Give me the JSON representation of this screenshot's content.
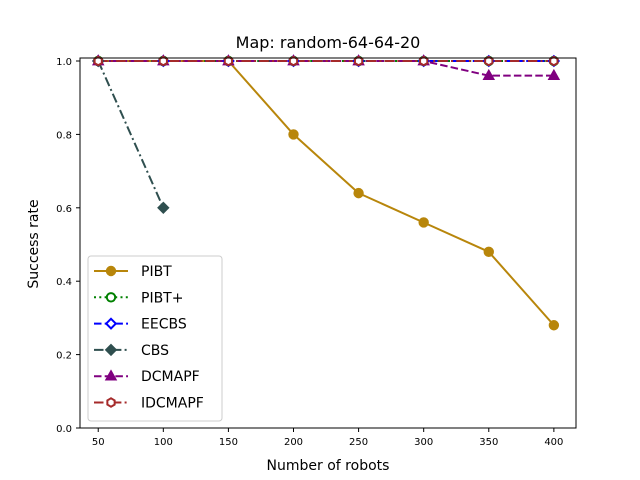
{
  "chart_data": {
    "type": "line",
    "title": "Map: random-64-64-20",
    "xlabel": "Number of robots",
    "ylabel": "Success rate",
    "x_ticks": [
      50,
      100,
      150,
      200,
      250,
      300,
      350,
      400
    ],
    "y_ticks": [
      0.0,
      0.2,
      0.4,
      0.6,
      0.8,
      1.0
    ],
    "y_tick_labels": [
      "0.0",
      "0.2",
      "0.4",
      "0.6",
      "0.8",
      "1.0"
    ],
    "xlim": [
      36,
      417
    ],
    "ylim": [
      0.0,
      1.0
    ],
    "grid": false,
    "legend_position": "lower-left",
    "series": [
      {
        "name": "PIBT",
        "color": "#b8860b",
        "dash": "solid",
        "marker": "circle",
        "filled": true,
        "x": [
          50,
          100,
          150,
          200,
          250,
          300,
          350,
          400
        ],
        "y": [
          1.0,
          1.0,
          1.0,
          0.8,
          0.64,
          0.56,
          0.48,
          0.28
        ]
      },
      {
        "name": "PIBT+",
        "color": "#008000",
        "dash": "dotted",
        "marker": "circle",
        "filled": false,
        "x": [
          50,
          100,
          150,
          200,
          250,
          300,
          350,
          400
        ],
        "y": [
          1.0,
          1.0,
          1.0,
          1.0,
          1.0,
          1.0,
          1.0,
          1.0
        ]
      },
      {
        "name": "EECBS",
        "color": "#0000ff",
        "dash": "dashed",
        "marker": "diamond",
        "filled": false,
        "x": [
          50,
          100,
          150,
          200,
          250,
          300,
          350,
          400
        ],
        "y": [
          1.0,
          1.0,
          1.0,
          1.0,
          1.0,
          1.0,
          1.0,
          1.0
        ]
      },
      {
        "name": "CBS",
        "color": "#2f4f4f",
        "dash": "dashdot",
        "marker": "diamond",
        "filled": true,
        "x": [
          50,
          100
        ],
        "y": [
          1.0,
          0.6
        ]
      },
      {
        "name": "DCMAPF",
        "color": "#800080",
        "dash": "dashed",
        "marker": "triangle",
        "filled": true,
        "x": [
          50,
          100,
          150,
          200,
          250,
          300,
          350,
          400
        ],
        "y": [
          1.0,
          1.0,
          1.0,
          1.0,
          1.0,
          1.0,
          0.96,
          0.96
        ]
      },
      {
        "name": "IDCMAPF",
        "color": "#a52a2a",
        "dash": "dashdot",
        "marker": "hexagon",
        "filled": false,
        "x": [
          50,
          100,
          150,
          200,
          250,
          300,
          350,
          400
        ],
        "y": [
          1.0,
          1.0,
          1.0,
          1.0,
          1.0,
          1.0,
          1.0,
          1.0
        ]
      }
    ]
  }
}
